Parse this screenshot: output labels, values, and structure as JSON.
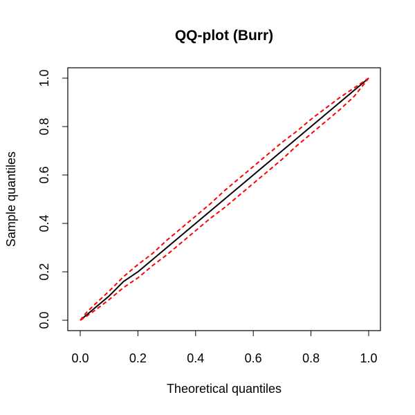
{
  "chart_data": {
    "type": "line",
    "title": "QQ-plot (Burr)",
    "xlabel": "Theoretical quantiles",
    "ylabel": "Sample quantiles",
    "xlim": [
      0.0,
      1.0
    ],
    "ylim": [
      0.0,
      1.0
    ],
    "x_ticks": [
      "0.0",
      "0.2",
      "0.4",
      "0.6",
      "0.8",
      "1.0"
    ],
    "y_ticks": [
      "0.0",
      "0.2",
      "0.4",
      "0.6",
      "0.8",
      "1.0"
    ],
    "grid": false,
    "legend": "none",
    "series": [
      {
        "color": "#000000",
        "style": "solid",
        "x": [
          0.0,
          0.02,
          0.05,
          0.1,
          0.15,
          0.2,
          0.25,
          0.3,
          0.35,
          0.4,
          0.45,
          0.5,
          0.55,
          0.6,
          0.65,
          0.7,
          0.75,
          0.8,
          0.85,
          0.9,
          0.95,
          1.0
        ],
        "y": [
          0.0,
          0.02,
          0.05,
          0.1,
          0.16,
          0.2,
          0.25,
          0.3,
          0.35,
          0.4,
          0.45,
          0.5,
          0.55,
          0.6,
          0.65,
          0.7,
          0.75,
          0.8,
          0.85,
          0.9,
          0.95,
          1.0
        ]
      },
      {
        "color": "#ff0000",
        "style": "dashed",
        "x": [
          0.0,
          0.02,
          0.05,
          0.1,
          0.15,
          0.2,
          0.25,
          0.3,
          0.35,
          0.4,
          0.45,
          0.5,
          0.55,
          0.6,
          0.65,
          0.7,
          0.75,
          0.8,
          0.85,
          0.9,
          0.95,
          1.0
        ],
        "y": [
          0.0,
          0.03,
          0.065,
          0.12,
          0.18,
          0.23,
          0.275,
          0.33,
          0.38,
          0.43,
          0.48,
          0.535,
          0.585,
          0.635,
          0.685,
          0.735,
          0.78,
          0.83,
          0.875,
          0.92,
          0.96,
          1.0
        ]
      },
      {
        "color": "#ff0000",
        "style": "dashed",
        "x": [
          0.0,
          0.02,
          0.05,
          0.1,
          0.15,
          0.2,
          0.25,
          0.3,
          0.35,
          0.4,
          0.45,
          0.5,
          0.55,
          0.6,
          0.65,
          0.7,
          0.75,
          0.8,
          0.85,
          0.9,
          0.95,
          1.0
        ],
        "y": [
          0.0,
          0.015,
          0.04,
          0.085,
          0.135,
          0.175,
          0.225,
          0.27,
          0.32,
          0.37,
          0.42,
          0.465,
          0.515,
          0.565,
          0.615,
          0.665,
          0.72,
          0.77,
          0.82,
          0.87,
          0.925,
          1.0
        ]
      }
    ]
  }
}
